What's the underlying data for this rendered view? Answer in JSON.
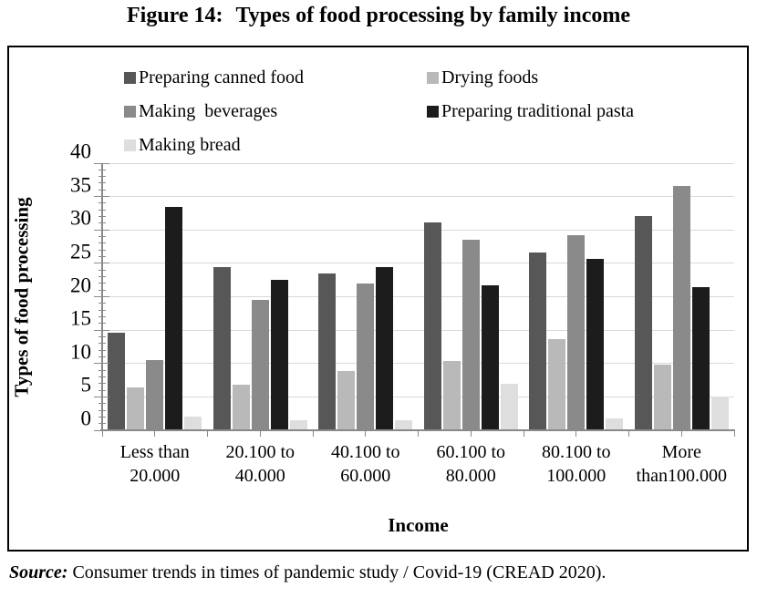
{
  "title": {
    "figure_label": "Figure 14:",
    "text": "Types of food processing by family income"
  },
  "chart_data": {
    "type": "bar",
    "title": "Figure 14: Types of food processing by family income",
    "xlabel": "Income",
    "ylabel": "Types of food processing",
    "ylim": [
      0,
      40
    ],
    "ytick_step": 5,
    "yticks": [
      0,
      5,
      10,
      15,
      20,
      25,
      30,
      35,
      40
    ],
    "minor_tick_step": 1,
    "grid": true,
    "legend_position": "top",
    "categories": [
      "Less than 20.000",
      "20.100 to 40.000",
      "40.100 to 60.000",
      "60.100 to 80.000",
      "80.100 to 100.000",
      "More than100.000"
    ],
    "category_lines": [
      [
        "Less than",
        "20.000"
      ],
      [
        "20.100 to",
        "40.000"
      ],
      [
        "40.100 to",
        "60.000"
      ],
      [
        "60.100 to",
        "80.000"
      ],
      [
        "80.100 to",
        "100.000"
      ],
      [
        "More",
        "than100.000"
      ]
    ],
    "series": [
      {
        "name": "Preparing canned food",
        "color": "#575757",
        "values": [
          14.6,
          24.4,
          23.5,
          31.1,
          26.6,
          32.1
        ]
      },
      {
        "name": "Drying foods",
        "color": "#b9b9b9",
        "values": [
          6.4,
          6.9,
          8.9,
          10.4,
          13.6,
          9.8
        ]
      },
      {
        "name": "Making  beverages",
        "color": "#8a8a8a",
        "values": [
          10.5,
          19.5,
          22.0,
          28.5,
          29.2,
          36.6
        ]
      },
      {
        "name": "Preparing traditional pasta",
        "color": "#1c1c1c",
        "values": [
          33.4,
          22.6,
          24.5,
          21.7,
          25.7,
          21.4
        ]
      },
      {
        "name": "Making bread",
        "color": "#dedede",
        "values": [
          2.1,
          1.5,
          1.5,
          7.0,
          1.8,
          5.0
        ]
      }
    ],
    "colors": {
      "gridline": "#d9d9d9",
      "axis": "#898989",
      "border": "#000000",
      "text": "#000000"
    }
  },
  "source": {
    "label": "Source:",
    "text": " Consumer trends in times of pandemic study / Covid-19 (CREAD 2020)."
  }
}
